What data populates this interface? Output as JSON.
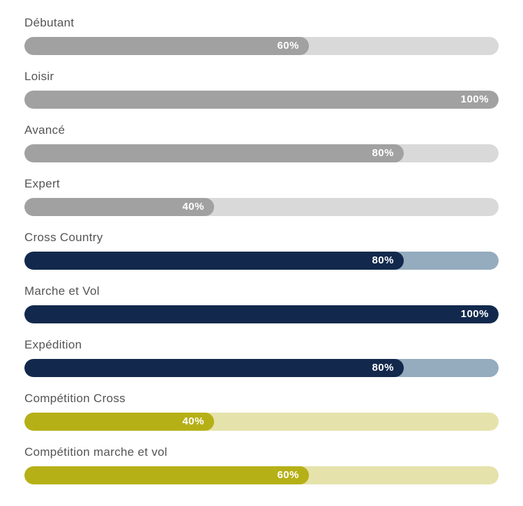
{
  "chart_data": {
    "type": "bar",
    "orientation": "horizontal",
    "title": "",
    "xlabel": "",
    "ylabel": "",
    "xlim": [
      0,
      100
    ],
    "grid": false,
    "legend": false,
    "categories": [
      "Débutant",
      "Loisir",
      "Avancé",
      "Expert",
      "Cross Country",
      "Marche et Vol",
      "Expédition",
      "Compétition Cross",
      "Compétition marche et vol"
    ],
    "values": [
      60,
      100,
      80,
      40,
      80,
      100,
      80,
      40,
      60
    ],
    "value_labels": [
      "60%",
      "100%",
      "80%",
      "40%",
      "80%",
      "100%",
      "80%",
      "40%",
      "60%"
    ],
    "color_groups": [
      {
        "name": "gray",
        "fill": "#a1a1a1",
        "track": "#d9d9d9",
        "rows": [
          0,
          1,
          2,
          3
        ]
      },
      {
        "name": "navy",
        "fill": "#12294d",
        "track": "#95abbe",
        "rows": [
          4,
          5,
          6
        ]
      },
      {
        "name": "olive",
        "fill": "#b6b017",
        "track": "#e6e2ab",
        "rows": [
          7,
          8
        ]
      }
    ]
  },
  "colors": {
    "background": "#ffffff",
    "label_text": "#545454",
    "value_text": "#ffffff"
  },
  "bars": [
    {
      "label": "Débutant",
      "percent": 60,
      "value_label": "60%",
      "fill": "#a1a1a1",
      "track": "#d9d9d9"
    },
    {
      "label": "Loisir",
      "percent": 100,
      "value_label": "100%",
      "fill": "#a1a1a1",
      "track": "#d9d9d9"
    },
    {
      "label": "Avancé",
      "percent": 80,
      "value_label": "80%",
      "fill": "#a1a1a1",
      "track": "#d9d9d9"
    },
    {
      "label": "Expert",
      "percent": 40,
      "value_label": "40%",
      "fill": "#a1a1a1",
      "track": "#d9d9d9"
    },
    {
      "label": "Cross Country",
      "percent": 80,
      "value_label": "80%",
      "fill": "#12294d",
      "track": "#95abbe"
    },
    {
      "label": "Marche et Vol",
      "percent": 100,
      "value_label": "100%",
      "fill": "#12294d",
      "track": "#95abbe"
    },
    {
      "label": "Expédition",
      "percent": 80,
      "value_label": "80%",
      "fill": "#12294d",
      "track": "#95abbe"
    },
    {
      "label": "Compétition Cross",
      "percent": 40,
      "value_label": "40%",
      "fill": "#b6b017",
      "track": "#e6e2ab"
    },
    {
      "label": "Compétition marche et vol",
      "percent": 60,
      "value_label": "60%",
      "fill": "#b6b017",
      "track": "#e6e2ab"
    }
  ]
}
